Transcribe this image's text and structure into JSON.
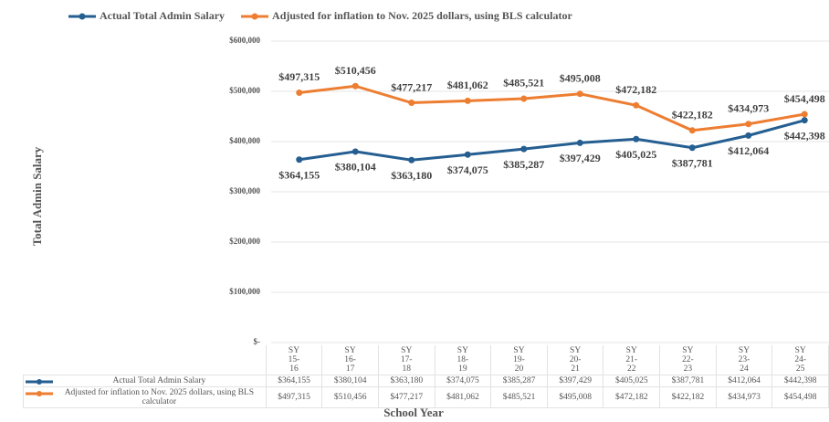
{
  "chart_data": {
    "type": "line",
    "y_label": "Total Admin Salary",
    "x_label": "School Year",
    "categories": [
      "SY 15-16",
      "SY 16-17",
      "SY 17-18",
      "SY 18-19",
      "SY 19-20",
      "SY 20-21",
      "SY 21-22",
      "SY 22-23",
      "SY 23-24",
      "SY 24-25"
    ],
    "series": [
      {
        "name": "Actual Total Admin Salary",
        "color": "#255e91",
        "values": [
          364155,
          380104,
          363180,
          374075,
          385287,
          397429,
          405025,
          387781,
          412064,
          442398
        ],
        "value_labels": [
          "$364,155",
          "$380,104",
          "$363,180",
          "$374,075",
          "$385,287",
          "$397,429",
          "$405,025",
          "$387,781",
          "$412,064",
          "$442,398"
        ]
      },
      {
        "name": "Adjusted for inflation to Nov. 2025 dollars, using BLS calculator",
        "color": "#ed7d31",
        "values": [
          497315,
          510456,
          477217,
          481062,
          485521,
          495008,
          472182,
          422182,
          434973,
          454498
        ],
        "value_labels": [
          "$497,315",
          "$510,456",
          "$477,217",
          "$481,062",
          "$485,521",
          "$495,008",
          "$472,182",
          "$422,182",
          "$434,973",
          "$454,498"
        ]
      }
    ],
    "ylim": [
      0,
      600000
    ],
    "yticks": [
      {
        "value": 0,
        "label": "$-"
      },
      {
        "value": 100000,
        "label": "$100,000"
      },
      {
        "value": 200000,
        "label": "$200,000"
      },
      {
        "value": 300000,
        "label": "$300,000"
      },
      {
        "value": 400000,
        "label": "$400,000"
      },
      {
        "value": 500000,
        "label": "$500,000"
      },
      {
        "value": 600000,
        "label": "$600,000"
      }
    ],
    "grid": true,
    "legend": "top"
  }
}
